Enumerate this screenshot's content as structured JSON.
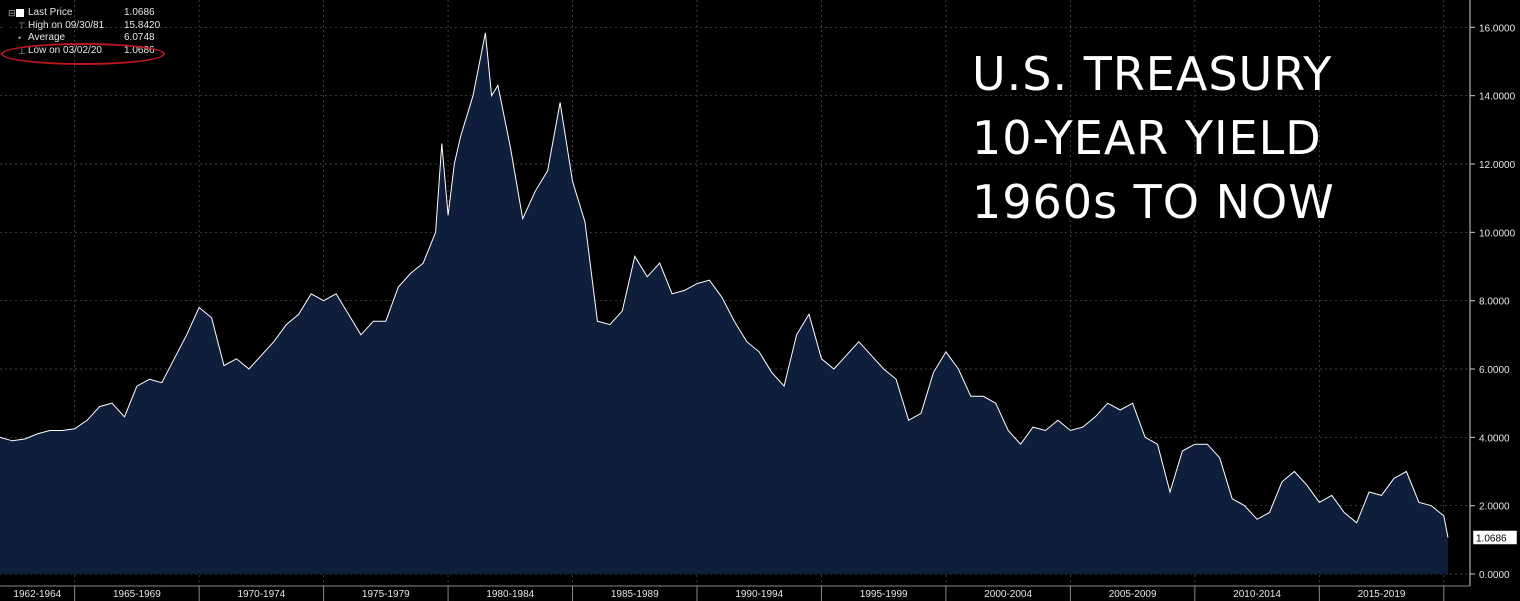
{
  "legend": {
    "last_price": {
      "label": "Last Price",
      "value": "1.0686"
    },
    "high": {
      "label": "High on 09/30/81",
      "value": "15.8420"
    },
    "average": {
      "label": "Average",
      "value": "6.0748"
    },
    "low": {
      "label": "Low on 03/02/20",
      "value": "1.0686"
    }
  },
  "annotation": {
    "line1": "U.S. TREASURY",
    "line2": "10-YEAR YIELD",
    "line3": "1960s TO NOW"
  },
  "last_value_label": "1.0686",
  "colors": {
    "background": "#000000",
    "area_fill": "#0f1e3a",
    "line": "#ffffff",
    "grid": "#5a5a5a",
    "highlight": "#c0161f"
  },
  "chart_data": {
    "type": "area",
    "ylim": [
      0,
      16.8
    ],
    "yticks": [
      0,
      2,
      4,
      6,
      8,
      10,
      12,
      14,
      16
    ],
    "ytick_labels": [
      "0.0000",
      "2.0000",
      "4.0000",
      "6.0000",
      "8.0000",
      "10.0000",
      "12.0000",
      "14.0000",
      "16.0000"
    ],
    "xlim": [
      1962.0,
      2020.25
    ],
    "x_period_labels": [
      "1962-1964",
      "1965-1969",
      "1970-1974",
      "1975-1979",
      "1980-1984",
      "1985-1989",
      "1990-1994",
      "1995-1999",
      "2000-2004",
      "2005-2009",
      "2010-2014",
      "2015-2019"
    ],
    "x_period_starts": [
      1962,
      1965,
      1970,
      1975,
      1980,
      1985,
      1990,
      1995,
      2000,
      2005,
      2010,
      2015,
      2020
    ],
    "x": [
      1962.0,
      1962.5,
      1963.0,
      1963.5,
      1964.0,
      1964.5,
      1965.0,
      1965.5,
      1966.0,
      1966.5,
      1967.0,
      1967.5,
      1968.0,
      1968.5,
      1969.0,
      1969.5,
      1970.0,
      1970.5,
      1971.0,
      1971.5,
      1972.0,
      1972.5,
      1973.0,
      1973.5,
      1974.0,
      1974.5,
      1975.0,
      1975.5,
      1976.0,
      1976.5,
      1977.0,
      1977.5,
      1978.0,
      1978.5,
      1979.0,
      1979.5,
      1979.75,
      1980.0,
      1980.25,
      1980.5,
      1981.0,
      1981.5,
      1981.75,
      1982.0,
      1982.5,
      1983.0,
      1983.5,
      1984.0,
      1984.5,
      1985.0,
      1985.5,
      1986.0,
      1986.5,
      1987.0,
      1987.5,
      1988.0,
      1988.5,
      1989.0,
      1989.5,
      1990.0,
      1990.5,
      1991.0,
      1991.5,
      1992.0,
      1992.5,
      1993.0,
      1993.5,
      1994.0,
      1994.5,
      1995.0,
      1995.5,
      1996.0,
      1996.5,
      1997.0,
      1997.5,
      1998.0,
      1998.5,
      1999.0,
      1999.5,
      2000.0,
      2000.5,
      2001.0,
      2001.5,
      2002.0,
      2002.5,
      2003.0,
      2003.5,
      2004.0,
      2004.5,
      2005.0,
      2005.5,
      2006.0,
      2006.5,
      2007.0,
      2007.5,
      2008.0,
      2008.5,
      2009.0,
      2009.5,
      2010.0,
      2010.5,
      2011.0,
      2011.5,
      2012.0,
      2012.5,
      2013.0,
      2013.5,
      2014.0,
      2014.5,
      2015.0,
      2015.5,
      2016.0,
      2016.5,
      2017.0,
      2017.5,
      2018.0,
      2018.5,
      2019.0,
      2019.5,
      2020.0,
      2020.17
    ],
    "y": [
      4.0,
      3.9,
      3.95,
      4.1,
      4.2,
      4.2,
      4.25,
      4.5,
      4.9,
      5.0,
      4.6,
      5.5,
      5.7,
      5.6,
      6.3,
      7.0,
      7.8,
      7.5,
      6.1,
      6.3,
      6.0,
      6.4,
      6.8,
      7.3,
      7.6,
      8.2,
      8.0,
      8.2,
      7.6,
      7.0,
      7.4,
      7.4,
      8.4,
      8.8,
      9.1,
      10.0,
      12.6,
      10.5,
      12.0,
      12.8,
      14.0,
      15.84,
      14.0,
      14.3,
      12.5,
      10.4,
      11.2,
      11.8,
      13.8,
      11.5,
      10.3,
      7.4,
      7.3,
      7.7,
      9.3,
      8.7,
      9.1,
      8.2,
      8.3,
      8.5,
      8.6,
      8.1,
      7.4,
      6.8,
      6.5,
      5.9,
      5.5,
      7.0,
      7.6,
      6.3,
      6.0,
      6.4,
      6.8,
      6.4,
      6.0,
      5.7,
      4.5,
      4.7,
      5.9,
      6.5,
      6.0,
      5.2,
      5.2,
      5.0,
      4.2,
      3.8,
      4.3,
      4.2,
      4.5,
      4.2,
      4.3,
      4.6,
      5.0,
      4.8,
      5.0,
      4.0,
      3.8,
      2.4,
      3.6,
      3.8,
      3.8,
      3.4,
      2.2,
      2.0,
      1.6,
      1.8,
      2.7,
      3.0,
      2.6,
      2.1,
      2.3,
      1.8,
      1.5,
      2.4,
      2.3,
      2.8,
      3.0,
      2.1,
      2.0,
      1.7,
      1.0686
    ]
  }
}
